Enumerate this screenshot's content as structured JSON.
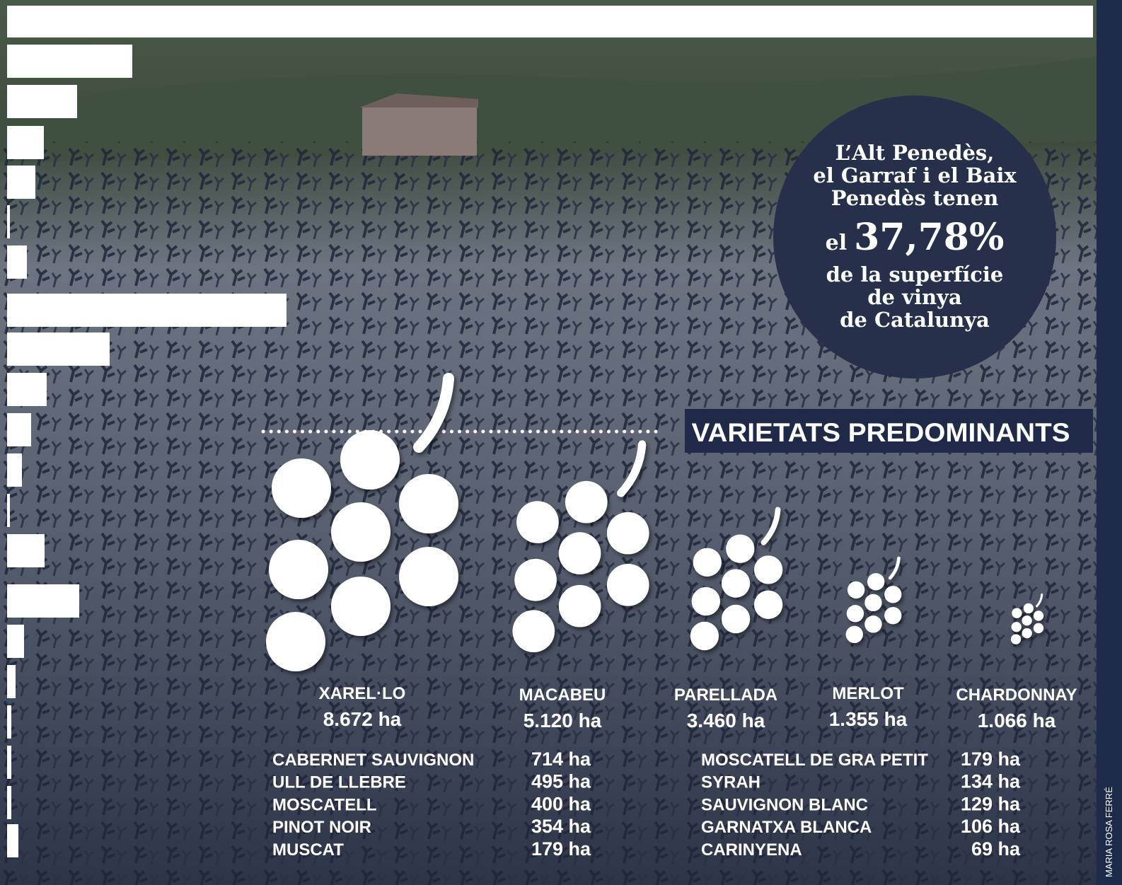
{
  "bubble": {
    "lines": [
      "L’Alt Penedès,",
      "el Garraf i el Baix",
      "Penedès tenen"
    ],
    "prefix": "el",
    "highlight": "37,78%",
    "closing_lines": [
      "de la superfície",
      "de vinya",
      "de Catalunya"
    ]
  },
  "title": "VARIETATS PREDOMINANTS",
  "main_varieties": [
    {
      "name": "XAREL·LO",
      "area": "8.672 ha"
    },
    {
      "name": "MACABEU",
      "area": "5.120 ha"
    },
    {
      "name": "PARELLADA",
      "area": "3.460 ha"
    },
    {
      "name": "MERLOT",
      "area": "1.355 ha"
    },
    {
      "name": "CHARDONNAY",
      "area": "1.066 ha"
    }
  ],
  "other_varieties": [
    [
      {
        "name": "CABERNET SAUVIGNON",
        "area": "714 ha"
      },
      {
        "name": "ULL DE LLEBRE",
        "area": "495 ha"
      },
      {
        "name": "MOSCATELL",
        "area": "400 ha"
      },
      {
        "name": "PINOT NOIR",
        "area": "354 ha"
      },
      {
        "name": "MUSCAT",
        "area": "179 ha"
      }
    ],
    [
      {
        "name": "MOSCATELL DE GRA PETIT",
        "area": "179 ha"
      },
      {
        "name": "SYRAH",
        "area": "134 ha"
      },
      {
        "name": "SAUVIGNON BLANC",
        "area": "129 ha"
      },
      {
        "name": "GARNATXA BLANCA",
        "area": "106 ha"
      },
      {
        "name": "CARINYENA",
        "area": "69 ha"
      }
    ]
  ],
  "credit": "MARIA ROSA FERRÉ"
}
